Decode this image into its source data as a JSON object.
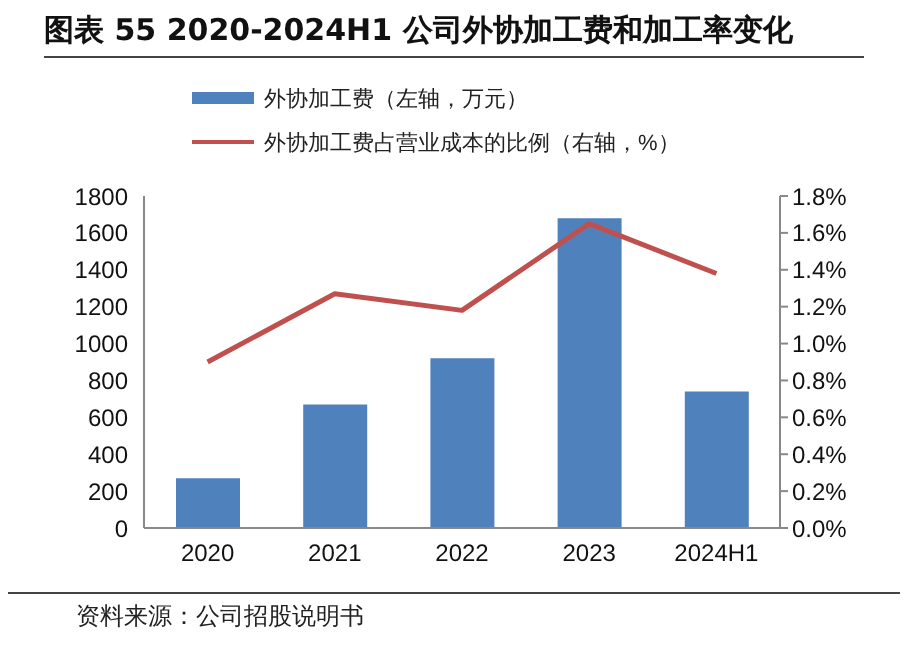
{
  "chart_data": {
    "type": "bar",
    "title": "图表 55 2020-2024H1 公司外协加工费和加工率变化",
    "categories": [
      "2020",
      "2021",
      "2022",
      "2023",
      "2024H1"
    ],
    "series": [
      {
        "name": "外协加工费（左轴，万元）",
        "color": "#4f81bd",
        "values": [
          270,
          670,
          920,
          1680,
          740
        ]
      },
      {
        "name": "外协加工费占营业成本的比例（右轴，%）",
        "type": "line",
        "axis": "y2",
        "color": "#c0504d",
        "values": [
          0.9,
          1.27,
          1.18,
          1.65,
          1.38
        ]
      }
    ],
    "ylim": [
      0,
      1800
    ],
    "yticks": [
      0,
      200,
      400,
      600,
      800,
      1000,
      1200,
      1400,
      1600,
      1800
    ],
    "y2lim": [
      0,
      1.8
    ],
    "y2ticks": [
      {
        "value": 0,
        "label": "0.0%"
      },
      {
        "value": 0.2,
        "label": "0.2%"
      },
      {
        "value": 0.4,
        "label": "0.4%"
      },
      {
        "value": 0.6,
        "label": "0.6%"
      },
      {
        "value": 0.8,
        "label": "0.8%"
      },
      {
        "value": 1.0,
        "label": "1.0%"
      },
      {
        "value": 1.2,
        "label": "1.2%"
      },
      {
        "value": 1.4,
        "label": "1.4%"
      },
      {
        "value": 1.6,
        "label": "1.6%"
      },
      {
        "value": 1.8,
        "label": "1.8%"
      }
    ],
    "legend": "top",
    "grid": false,
    "marker": "none",
    "annotations": [
      "资料来源：公司招股说明书"
    ]
  }
}
